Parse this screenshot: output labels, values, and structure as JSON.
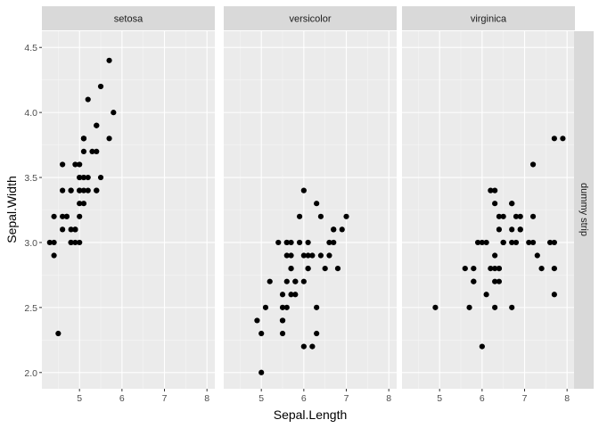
{
  "chart_data": {
    "type": "scatter",
    "xlabel": "Sepal.Length",
    "ylabel": "Sepal.Width",
    "xlim": [
      4.3,
      8.0
    ],
    "ylim": [
      2.0,
      4.5
    ],
    "x_ticks": [
      "5",
      "6",
      "7",
      "8"
    ],
    "y_ticks": [
      "2.0",
      "2.5",
      "3.0",
      "3.5",
      "4.0",
      "4.5"
    ],
    "grid": true,
    "right_strip": "dummy strip",
    "colors": {
      "panel_bg": "#EBEBEB",
      "grid_major": "#FFFFFF",
      "strip_bg": "#D9D9D9",
      "point": "#000000"
    },
    "facets": [
      {
        "name": "setosa",
        "points": [
          [
            5.1,
            3.5
          ],
          [
            4.9,
            3.0
          ],
          [
            4.7,
            3.2
          ],
          [
            4.6,
            3.1
          ],
          [
            5.0,
            3.6
          ],
          [
            5.4,
            3.9
          ],
          [
            4.6,
            3.4
          ],
          [
            5.0,
            3.4
          ],
          [
            4.4,
            2.9
          ],
          [
            4.9,
            3.1
          ],
          [
            5.4,
            3.7
          ],
          [
            4.8,
            3.4
          ],
          [
            4.8,
            3.0
          ],
          [
            4.3,
            3.0
          ],
          [
            5.8,
            4.0
          ],
          [
            5.7,
            4.4
          ],
          [
            5.4,
            3.9
          ],
          [
            5.1,
            3.5
          ],
          [
            5.7,
            3.8
          ],
          [
            5.1,
            3.8
          ],
          [
            5.4,
            3.4
          ],
          [
            5.1,
            3.7
          ],
          [
            4.6,
            3.6
          ],
          [
            5.1,
            3.3
          ],
          [
            4.8,
            3.4
          ],
          [
            5.0,
            3.0
          ],
          [
            5.0,
            3.4
          ],
          [
            5.2,
            3.5
          ],
          [
            5.2,
            3.4
          ],
          [
            4.7,
            3.2
          ],
          [
            4.8,
            3.1
          ],
          [
            5.4,
            3.4
          ],
          [
            5.2,
            4.1
          ],
          [
            5.5,
            4.2
          ],
          [
            4.9,
            3.1
          ],
          [
            5.0,
            3.2
          ],
          [
            5.5,
            3.5
          ],
          [
            4.9,
            3.6
          ],
          [
            4.4,
            3.0
          ],
          [
            5.1,
            3.4
          ],
          [
            5.0,
            3.5
          ],
          [
            4.5,
            2.3
          ],
          [
            4.4,
            3.2
          ],
          [
            5.0,
            3.5
          ],
          [
            5.1,
            3.8
          ],
          [
            4.8,
            3.0
          ],
          [
            5.1,
            3.8
          ],
          [
            4.6,
            3.2
          ],
          [
            5.3,
            3.7
          ],
          [
            5.0,
            3.3
          ]
        ]
      },
      {
        "name": "versicolor",
        "points": [
          [
            7.0,
            3.2
          ],
          [
            6.4,
            3.2
          ],
          [
            6.9,
            3.1
          ],
          [
            5.5,
            2.3
          ],
          [
            6.5,
            2.8
          ],
          [
            5.7,
            2.8
          ],
          [
            6.3,
            3.3
          ],
          [
            4.9,
            2.4
          ],
          [
            6.6,
            2.9
          ],
          [
            5.2,
            2.7
          ],
          [
            5.0,
            2.0
          ],
          [
            5.9,
            3.0
          ],
          [
            6.0,
            2.2
          ],
          [
            6.1,
            2.9
          ],
          [
            5.6,
            2.9
          ],
          [
            6.7,
            3.1
          ],
          [
            5.6,
            3.0
          ],
          [
            5.8,
            2.7
          ],
          [
            6.2,
            2.2
          ],
          [
            5.6,
            2.5
          ],
          [
            5.9,
            3.2
          ],
          [
            6.1,
            2.8
          ],
          [
            6.3,
            2.5
          ],
          [
            6.1,
            2.8
          ],
          [
            6.4,
            2.9
          ],
          [
            6.6,
            3.0
          ],
          [
            6.8,
            2.8
          ],
          [
            6.7,
            3.0
          ],
          [
            6.0,
            2.9
          ],
          [
            5.7,
            2.6
          ],
          [
            5.5,
            2.4
          ],
          [
            5.5,
            2.4
          ],
          [
            5.8,
            2.7
          ],
          [
            6.0,
            2.7
          ],
          [
            5.4,
            3.0
          ],
          [
            6.0,
            3.4
          ],
          [
            6.7,
            3.1
          ],
          [
            6.3,
            2.3
          ],
          [
            5.6,
            3.0
          ],
          [
            5.5,
            2.5
          ],
          [
            5.5,
            2.6
          ],
          [
            6.1,
            3.0
          ],
          [
            5.8,
            2.6
          ],
          [
            5.0,
            2.3
          ],
          [
            5.6,
            2.7
          ],
          [
            5.7,
            3.0
          ],
          [
            5.7,
            2.9
          ],
          [
            6.2,
            2.9
          ],
          [
            5.1,
            2.5
          ],
          [
            5.7,
            2.8
          ]
        ]
      },
      {
        "name": "virginica",
        "points": [
          [
            6.3,
            3.3
          ],
          [
            5.8,
            2.7
          ],
          [
            7.1,
            3.0
          ],
          [
            6.3,
            2.9
          ],
          [
            6.5,
            3.0
          ],
          [
            7.6,
            3.0
          ],
          [
            4.9,
            2.5
          ],
          [
            7.3,
            2.9
          ],
          [
            6.7,
            2.5
          ],
          [
            7.2,
            3.6
          ],
          [
            6.5,
            3.2
          ],
          [
            6.4,
            2.7
          ],
          [
            6.8,
            3.0
          ],
          [
            5.7,
            2.5
          ],
          [
            5.8,
            2.8
          ],
          [
            6.4,
            3.2
          ],
          [
            6.5,
            3.0
          ],
          [
            7.7,
            3.8
          ],
          [
            7.7,
            2.6
          ],
          [
            6.0,
            2.2
          ],
          [
            6.9,
            3.2
          ],
          [
            5.6,
            2.8
          ],
          [
            7.7,
            2.8
          ],
          [
            6.3,
            2.7
          ],
          [
            6.7,
            3.3
          ],
          [
            7.2,
            3.2
          ],
          [
            6.2,
            2.8
          ],
          [
            6.1,
            3.0
          ],
          [
            6.4,
            2.8
          ],
          [
            7.2,
            3.0
          ],
          [
            7.4,
            2.8
          ],
          [
            7.9,
            3.8
          ],
          [
            6.4,
            2.8
          ],
          [
            6.3,
            2.8
          ],
          [
            6.1,
            2.6
          ],
          [
            7.7,
            3.0
          ],
          [
            6.3,
            3.4
          ],
          [
            6.4,
            3.1
          ],
          [
            6.0,
            3.0
          ],
          [
            6.9,
            3.1
          ],
          [
            6.7,
            3.1
          ],
          [
            6.9,
            3.1
          ],
          [
            5.8,
            2.7
          ],
          [
            6.8,
            3.2
          ],
          [
            6.7,
            3.3
          ],
          [
            6.7,
            3.0
          ],
          [
            6.3,
            2.5
          ],
          [
            6.5,
            3.0
          ],
          [
            6.2,
            3.4
          ],
          [
            5.9,
            3.0
          ]
        ]
      }
    ]
  }
}
